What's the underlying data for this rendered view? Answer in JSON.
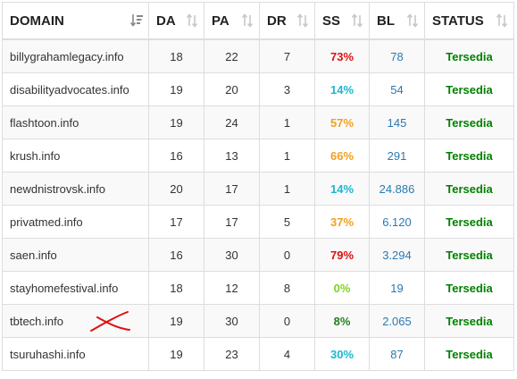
{
  "table": {
    "headers": [
      {
        "label": "DOMAIN",
        "sort_icon": "sort-alpha-desc-icon"
      },
      {
        "label": "DA",
        "sort_icon": "sort-both-icon"
      },
      {
        "label": "PA",
        "sort_icon": "sort-both-icon"
      },
      {
        "label": "DR",
        "sort_icon": "sort-both-icon"
      },
      {
        "label": "SS",
        "sort_icon": "sort-both-icon"
      },
      {
        "label": "BL",
        "sort_icon": "sort-both-icon"
      },
      {
        "label": "STATUS",
        "sort_icon": "sort-both-icon"
      }
    ],
    "rows": [
      {
        "domain": "billygrahamlegacy.info",
        "da": "18",
        "pa": "22",
        "dr": "7",
        "ss": "73%",
        "ss_color": "#e01010",
        "bl": "78",
        "status": "Tersedia"
      },
      {
        "domain": "disabilityadvocates.info",
        "da": "19",
        "pa": "20",
        "dr": "3",
        "ss": "14%",
        "ss_color": "#1ab8d0",
        "bl": "54",
        "status": "Tersedia"
      },
      {
        "domain": "flashtoon.info",
        "da": "19",
        "pa": "24",
        "dr": "1",
        "ss": "57%",
        "ss_color": "#f0a020",
        "bl": "145",
        "status": "Tersedia"
      },
      {
        "domain": "krush.info",
        "da": "16",
        "pa": "13",
        "dr": "1",
        "ss": "66%",
        "ss_color": "#f0a020",
        "bl": "291",
        "status": "Tersedia"
      },
      {
        "domain": "newdnistrovsk.info",
        "da": "20",
        "pa": "17",
        "dr": "1",
        "ss": "14%",
        "ss_color": "#1ab8d0",
        "bl": "24.886",
        "status": "Tersedia"
      },
      {
        "domain": "privatmed.info",
        "da": "17",
        "pa": "17",
        "dr": "5",
        "ss": "37%",
        "ss_color": "#f0a020",
        "bl": "6.120",
        "status": "Tersedia"
      },
      {
        "domain": "saen.info",
        "da": "16",
        "pa": "30",
        "dr": "0",
        "ss": "79%",
        "ss_color": "#e01010",
        "bl": "3.294",
        "status": "Tersedia"
      },
      {
        "domain": "stayhomefestival.info",
        "da": "18",
        "pa": "12",
        "dr": "8",
        "ss": "0%",
        "ss_color": "#7ed321",
        "bl": "19",
        "status": "Tersedia"
      },
      {
        "domain": "tbtech.info",
        "da": "19",
        "pa": "30",
        "dr": "0",
        "ss": "8%",
        "ss_color": "#208020",
        "bl": "2.065",
        "status": "Tersedia",
        "crossed": true
      },
      {
        "domain": "tsuruhashi.info",
        "da": "19",
        "pa": "23",
        "dr": "4",
        "ss": "30%",
        "ss_color": "#1ab8d0",
        "bl": "87",
        "status": "Tersedia"
      }
    ]
  },
  "colors": {
    "status_green": "#008000",
    "bl_blue": "#2a7ab0",
    "cross_red": "#e01010"
  }
}
